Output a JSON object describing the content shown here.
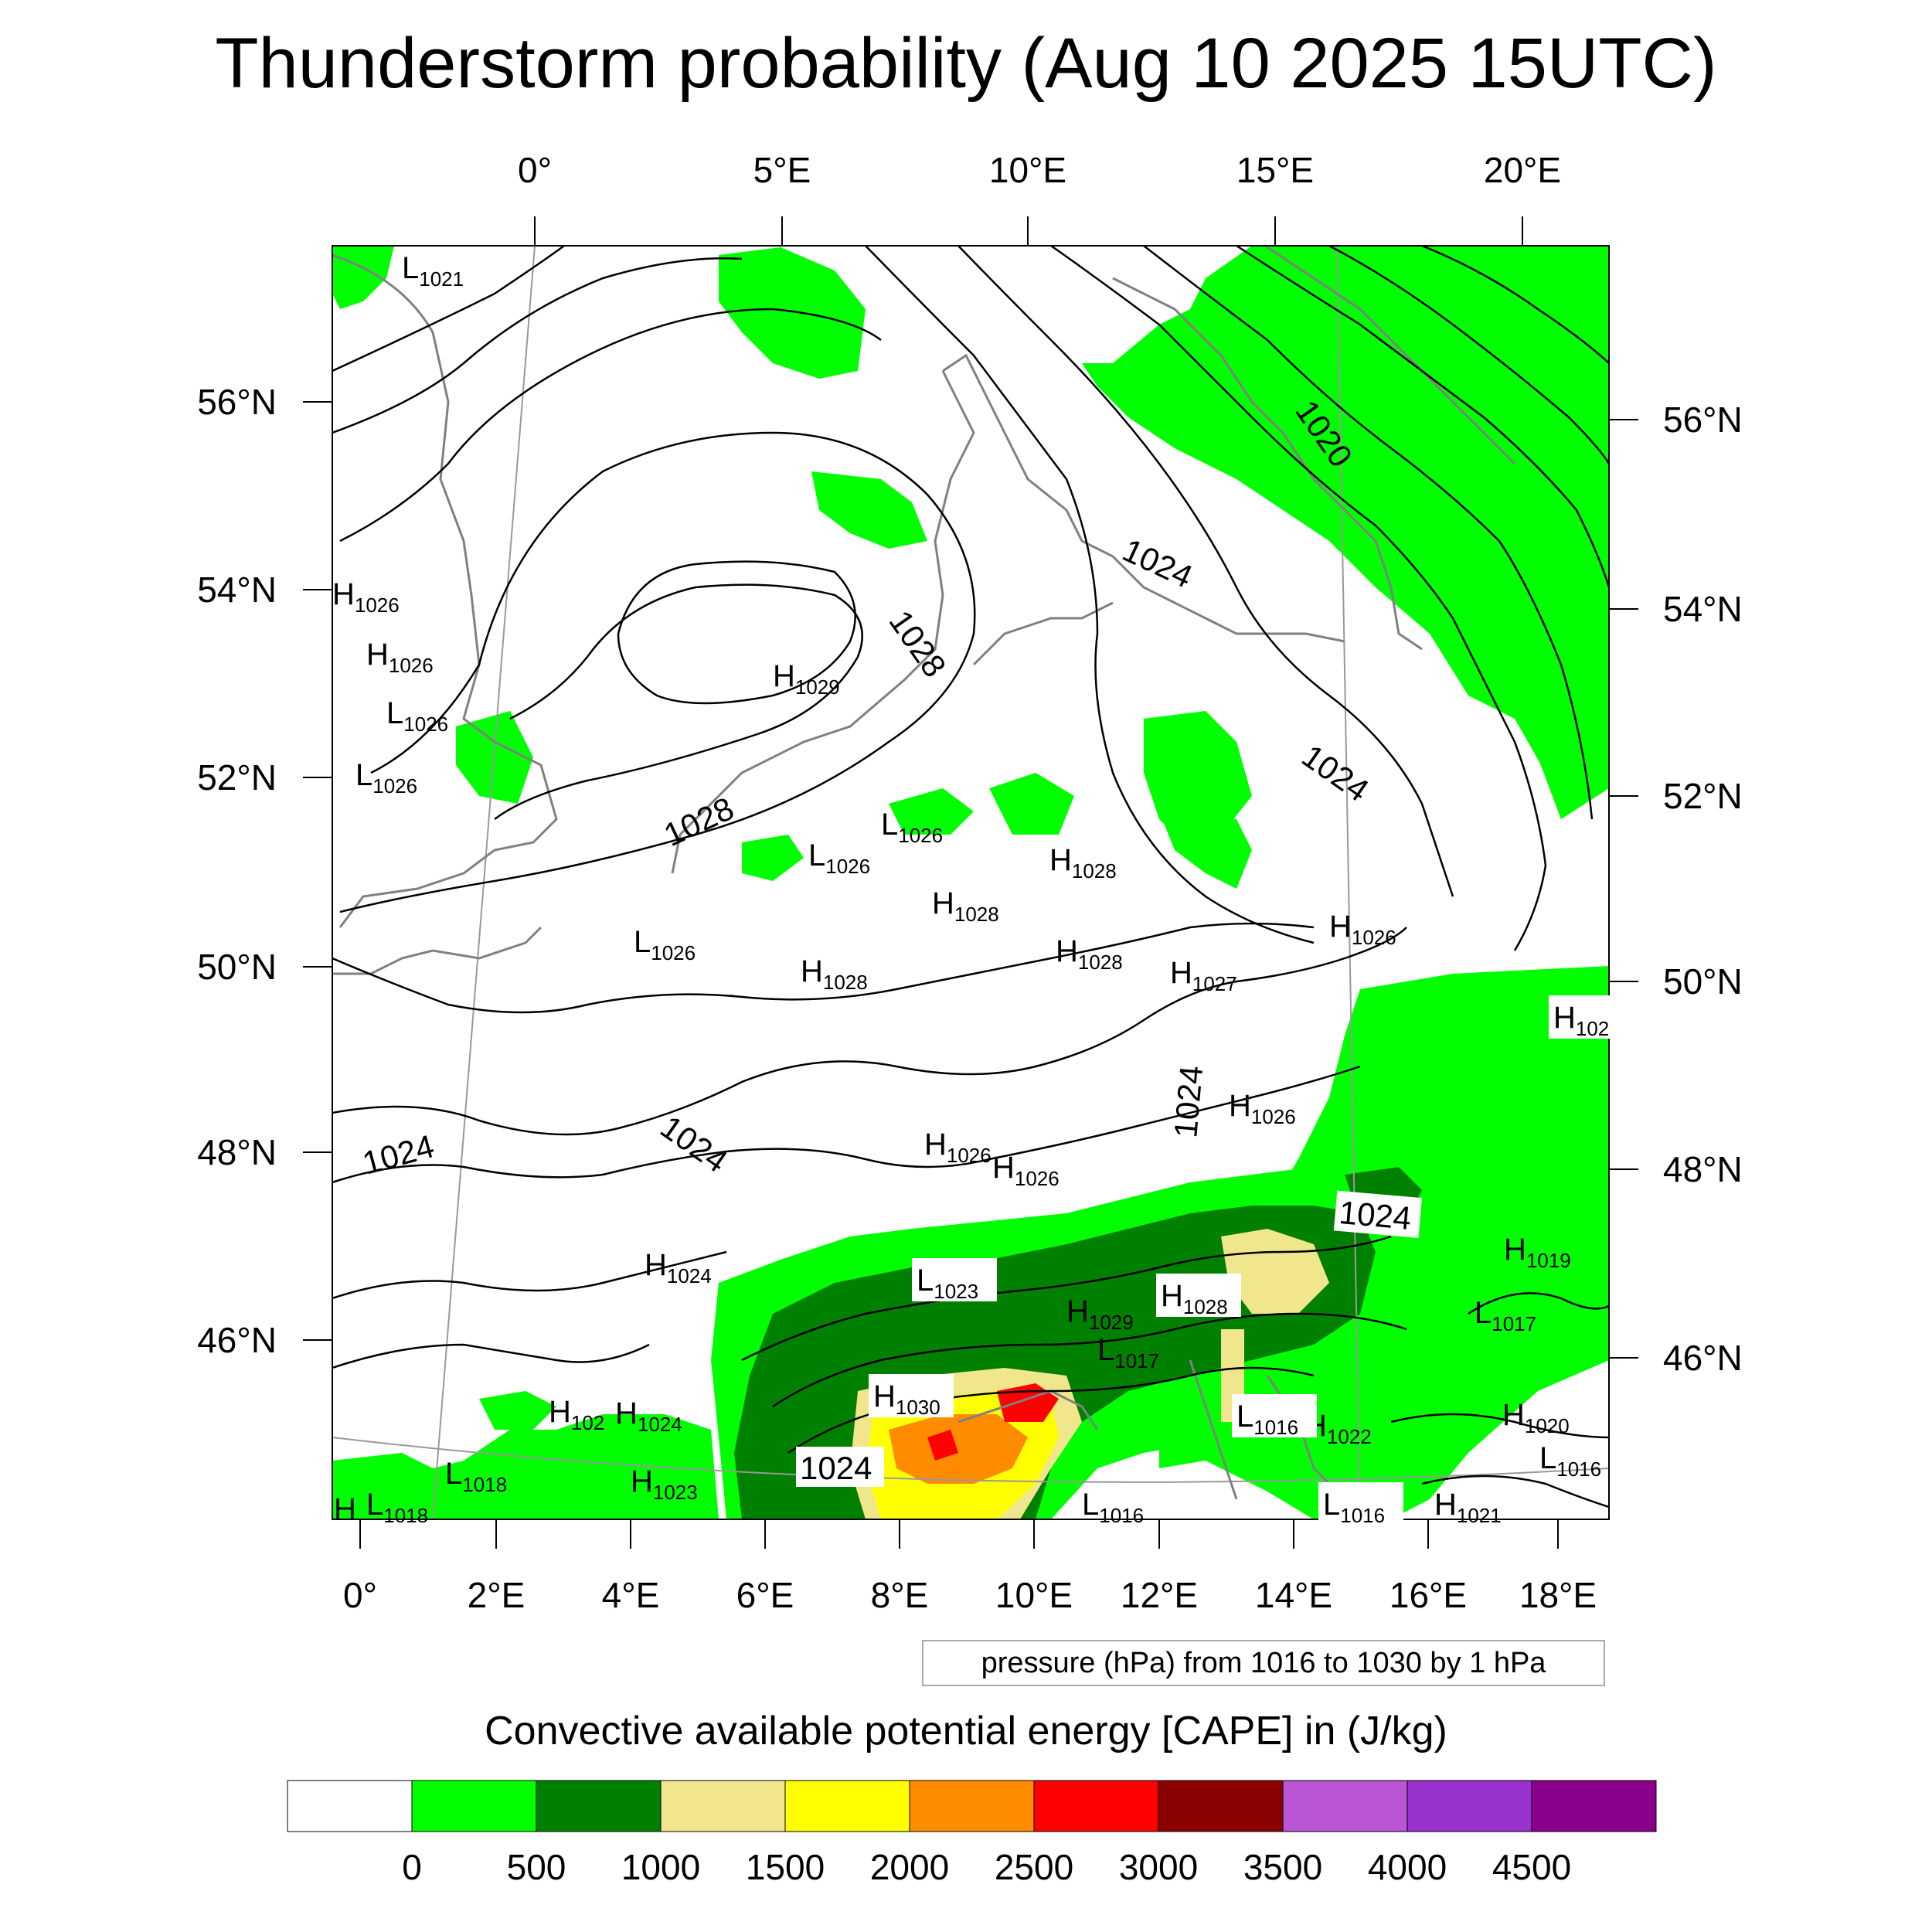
{
  "title": "Thunderstorm probability (Aug 10 2025 15UTC)",
  "top_lon_labels": [
    "0°",
    "5°E",
    "10°E",
    "15°E",
    "20°E"
  ],
  "bottom_lon_labels": [
    "0°",
    "2°E",
    "4°E",
    "6°E",
    "8°E",
    "10°E",
    "12°E",
    "14°E",
    "16°E",
    "18°E"
  ],
  "left_lat_labels": [
    "56°N",
    "54°N",
    "52°N",
    "50°N",
    "48°N",
    "46°N"
  ],
  "right_lat_labels": [
    "56°N",
    "54°N",
    "52°N",
    "50°N",
    "48°N",
    "46°N"
  ],
  "isobar_labels": [
    "1020",
    "1024",
    "1028",
    "1028",
    "1024",
    "1024",
    "1024",
    "1024",
    "1024",
    "1024"
  ],
  "pressure_centers": [
    {
      "t": "L",
      "v": "1021"
    },
    {
      "t": "H",
      "v": "1026"
    },
    {
      "t": "H",
      "v": "1026"
    },
    {
      "t": "L",
      "v": "1026"
    },
    {
      "t": "L",
      "v": "1026"
    },
    {
      "t": "H",
      "v": "1029"
    },
    {
      "t": "L",
      "v": "1026"
    },
    {
      "t": "L",
      "v": "1026"
    },
    {
      "t": "H",
      "v": "1028"
    },
    {
      "t": "H",
      "v": "1028"
    },
    {
      "t": "L",
      "v": "1026"
    },
    {
      "t": "H",
      "v": "1028"
    },
    {
      "t": "H",
      "v": "1028"
    },
    {
      "t": "H",
      "v": "1027"
    },
    {
      "t": "H",
      "v": "1026"
    },
    {
      "t": "H",
      "v": "102"
    },
    {
      "t": "H",
      "v": "1026"
    },
    {
      "t": "H",
      "v": "1026"
    },
    {
      "t": "H",
      "v": "1026"
    },
    {
      "t": "H",
      "v": "1024"
    },
    {
      "t": "L",
      "v": "1023"
    },
    {
      "t": "H",
      "v": "1028"
    },
    {
      "t": "H",
      "v": "1029"
    },
    {
      "t": "L",
      "v": "1017"
    },
    {
      "t": "H",
      "v": "1019"
    },
    {
      "t": "L",
      "v": "1017"
    },
    {
      "t": "H",
      "v": "1030"
    },
    {
      "t": "H",
      "v": "102"
    },
    {
      "t": "H",
      "v": "1024"
    },
    {
      "t": "L",
      "v": "1018"
    },
    {
      "t": "H",
      "v": "1023"
    },
    {
      "t": "L",
      "v": "1018"
    },
    {
      "t": "L",
      "v": "1016"
    },
    {
      "t": "H",
      "v": "1022"
    },
    {
      "t": "H",
      "v": "1020"
    },
    {
      "t": "L",
      "v": "1016"
    },
    {
      "t": "L",
      "v": "1016"
    },
    {
      "t": "L",
      "v": "1016"
    },
    {
      "t": "H",
      "v": "1021"
    },
    {
      "t": "H",
      "v": ""
    }
  ],
  "contour_info": "pressure (hPa) from 1016 to 1030 by 1 hPa",
  "colorbar": {
    "title": "Convective available potential energy [CAPE] in (J/kg)",
    "colors": [
      "#ffffff",
      "#00ff00",
      "#008000",
      "#f0e68c",
      "#ffff00",
      "#ff8c00",
      "#ff0000",
      "#8b0000",
      "#ba55d3",
      "#9932cc",
      "#8b008b"
    ],
    "labels": [
      "0",
      "500",
      "1000",
      "1500",
      "2000",
      "2500",
      "3000",
      "3500",
      "4000",
      "4500"
    ]
  }
}
